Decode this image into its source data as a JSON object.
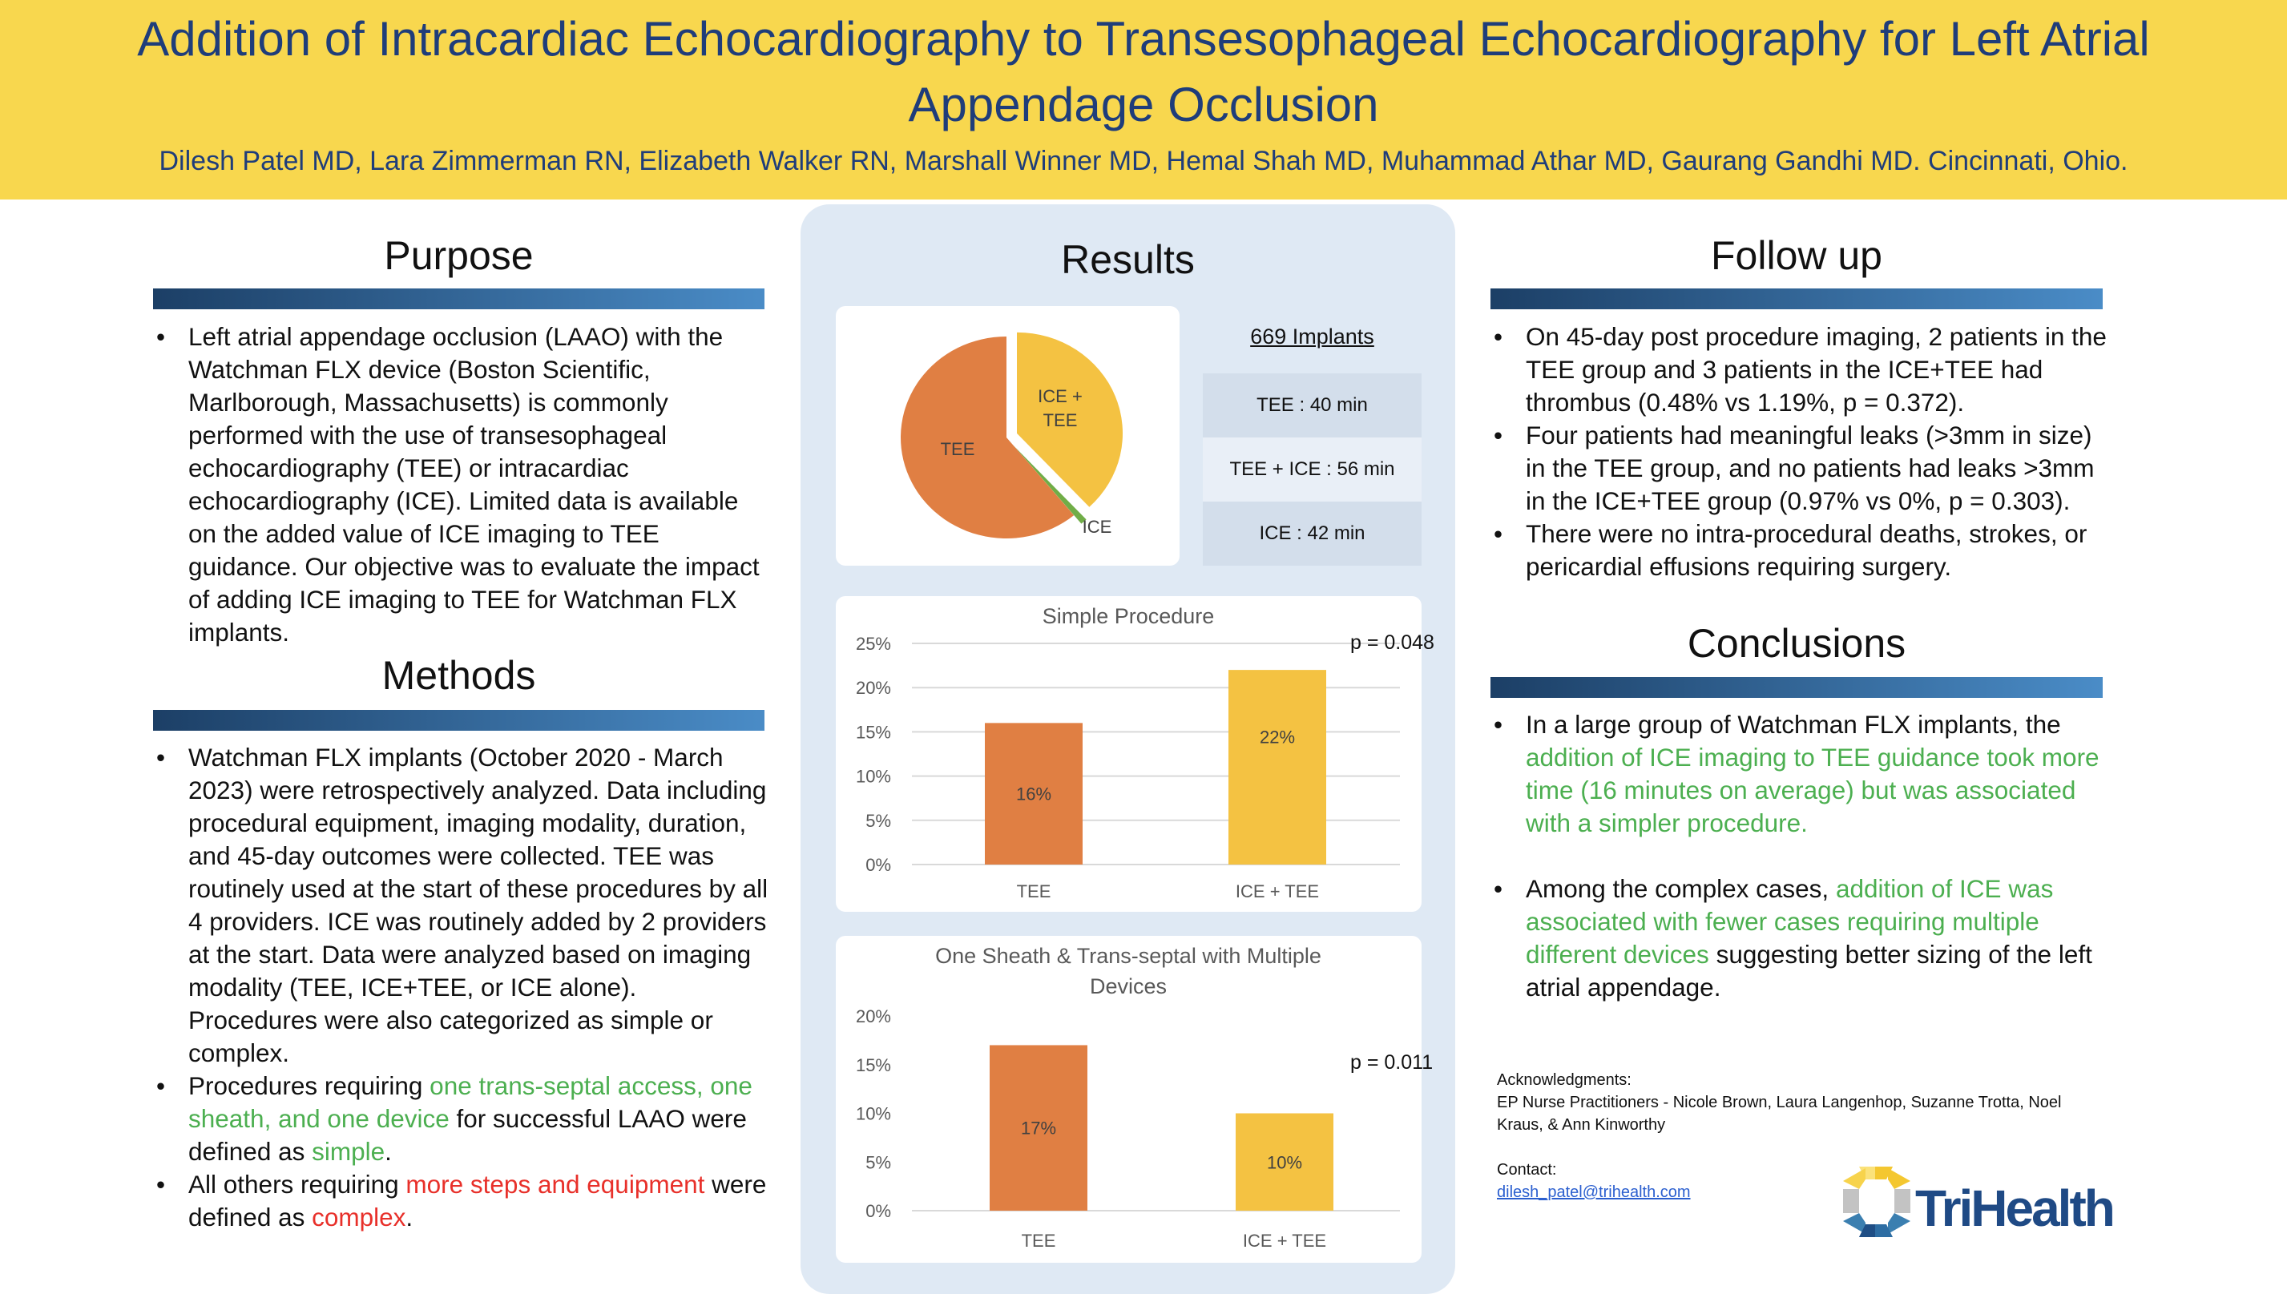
{
  "header": {
    "title": "Addition of Intracardiac Echocardiography to Transesophageal Echocardiography for Left Atrial Appendage Occlusion",
    "authors": "Dilesh Patel MD, Lara Zimmerman RN, Elizabeth Walker RN, Marshall Winner MD, Hemal Shah MD, Muhammad Athar MD, Gaurang Gandhi MD.  Cincinnati, Ohio."
  },
  "colors": {
    "header_bg": "#f8d74e",
    "title": "#1f3d7a",
    "tee": "#e07f43",
    "ice_tee": "#f4c242",
    "ice": "#70ad47",
    "highlight_green": "#4caf50",
    "highlight_red": "#e8302a",
    "panel_bg": "#dfe9f4"
  },
  "purpose": {
    "heading": "Purpose",
    "bullets": [
      [
        {
          "t": "Left atrial appendage occlusion (LAAO) with the Watchman FLX device (Boston Scientific, Marlborough, Massachusetts) is commonly performed with the use of transesophageal echocardiography (TEE) or intracardiac echocardiography (ICE). Limited data is available on the added value of ICE imaging to TEE guidance. Our objective was to evaluate the impact of adding ICE imaging to TEE for Watchman FLX implants."
        }
      ]
    ]
  },
  "methods": {
    "heading": "Methods",
    "bullets": [
      [
        {
          "t": "Watchman FLX implants (October 2020 - March 2023) were retrospectively analyzed. Data including procedural equipment, imaging modality, duration, and 45-day outcomes were collected. TEE was routinely used at the start of these procedures by all 4 providers.  ICE was routinely added by 2 providers at the start.  Data were analyzed based on imaging modality (TEE, ICE+TEE, or ICE alone). Procedures were also categorized as simple or complex."
        }
      ],
      [
        {
          "t": "Procedures requiring "
        },
        {
          "t": "one trans-septal access, one sheath, and one device",
          "c": "green"
        },
        {
          "t": " for successful LAAO were defined as "
        },
        {
          "t": "simple",
          "c": "green"
        },
        {
          "t": "."
        }
      ],
      [
        {
          "t": "All others requiring "
        },
        {
          "t": "more steps and equipment",
          "c": "red"
        },
        {
          "t": " were defined as "
        },
        {
          "t": "complex",
          "c": "red"
        },
        {
          "t": "."
        }
      ]
    ]
  },
  "results": {
    "heading": "Results",
    "implants_title": "669 Implants",
    "durations": [
      "TEE : 40 min",
      "TEE + ICE : 56 min",
      "ICE : 42 min"
    ]
  },
  "chart_data": [
    {
      "type": "pie",
      "labels": [
        "ICE + TEE",
        "ICE",
        "TEE"
      ],
      "values": [
        38,
        1,
        61
      ],
      "colors": [
        "#f4c242",
        "#70ad47",
        "#e07f43"
      ]
    },
    {
      "type": "bar",
      "title": "Simple Procedure",
      "categories": [
        "TEE",
        "ICE + TEE"
      ],
      "values": [
        16,
        22
      ],
      "data_labels": [
        "16%",
        "22%"
      ],
      "colors": [
        "#e07f43",
        "#f4c242"
      ],
      "ylim": [
        0,
        25
      ],
      "yticks": [
        "0%",
        "5%",
        "10%",
        "15%",
        "20%",
        "25%"
      ],
      "annotation": "p = 0.048",
      "grid": true
    },
    {
      "type": "bar",
      "title": "One Sheath & Trans-septal with Multiple Devices",
      "title_lines": [
        "One Sheath & Trans-septal with Multiple",
        "Devices"
      ],
      "categories": [
        "TEE",
        "ICE + TEE"
      ],
      "values": [
        17,
        10
      ],
      "data_labels": [
        "17%",
        "10%"
      ],
      "colors": [
        "#e07f43",
        "#f4c242"
      ],
      "ylim": [
        0,
        20
      ],
      "yticks": [
        "0%",
        "5%",
        "10%",
        "15%",
        "20%"
      ],
      "annotation": "p = 0.011",
      "grid": false
    }
  ],
  "followup": {
    "heading": "Follow up",
    "bullets": [
      [
        {
          "t": "On 45-day post procedure imaging, 2 patients in the TEE group and 3 patients in the ICE+TEE had thrombus (0.48% vs 1.19%, p = 0.372)."
        }
      ],
      [
        {
          "t": "Four patients had meaningful leaks (>3mm in size) in the TEE group, and no patients had leaks >3mm in the ICE+TEE group (0.97% vs 0%, p = 0.303)."
        }
      ],
      [
        {
          "t": "There were no intra-procedural deaths, strokes, or pericardial effusions requiring surgery."
        }
      ]
    ]
  },
  "conclusions": {
    "heading": "Conclusions",
    "bullets": [
      [
        {
          "t": "In a large group of Watchman FLX implants, the "
        },
        {
          "t": "addition of ICE imaging to TEE guidance took more time (16 minutes on average) but was associated with a simpler procedure.",
          "c": "green"
        }
      ],
      [
        {
          "t": "Among the complex cases, "
        },
        {
          "t": "addition of ICE was associated with fewer cases requiring multiple different devices",
          "c": "green"
        },
        {
          "t": " suggesting better sizing of the left atrial appendage."
        }
      ]
    ]
  },
  "acknowledgments": {
    "label": "Acknowledgments:",
    "text": "EP Nurse Practitioners - Nicole Brown, Laura Langenhop, Suzanne Trotta, Noel Kraus, & Ann Kinworthy",
    "contact_label": "Contact:",
    "email": "dilesh_patel@trihealth.com"
  },
  "logo": {
    "text": "TriHealth"
  }
}
